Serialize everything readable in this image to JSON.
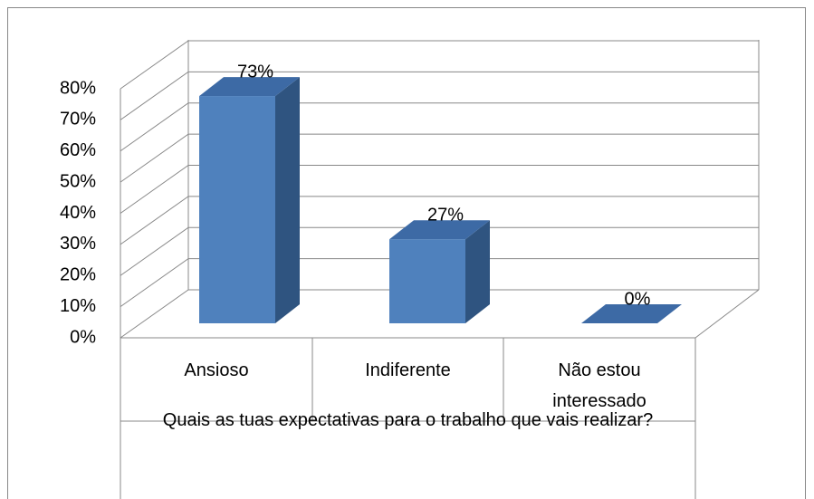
{
  "chart_data": {
    "type": "bar3d",
    "categories": [
      "Ansioso",
      "Indiferente",
      "Não estou interessado"
    ],
    "values": [
      73,
      27,
      0
    ],
    "value_labels": [
      "73%",
      "27%",
      "0%"
    ],
    "x_axis_title": "Quais as tuas expectativas para o trabalho que vais realizar?",
    "color": "#4f81bd",
    "ylim": [
      0,
      80
    ],
    "yticks": [
      {
        "value": 0,
        "label": "0%"
      },
      {
        "value": 10,
        "label": "10%"
      },
      {
        "value": 20,
        "label": "20%"
      },
      {
        "value": 30,
        "label": "30%"
      },
      {
        "value": 40,
        "label": "40%"
      },
      {
        "value": 50,
        "label": "50%"
      },
      {
        "value": 60,
        "label": "60%"
      },
      {
        "value": 70,
        "label": "70%"
      },
      {
        "value": 80,
        "label": "80%"
      }
    ],
    "grid": true
  }
}
